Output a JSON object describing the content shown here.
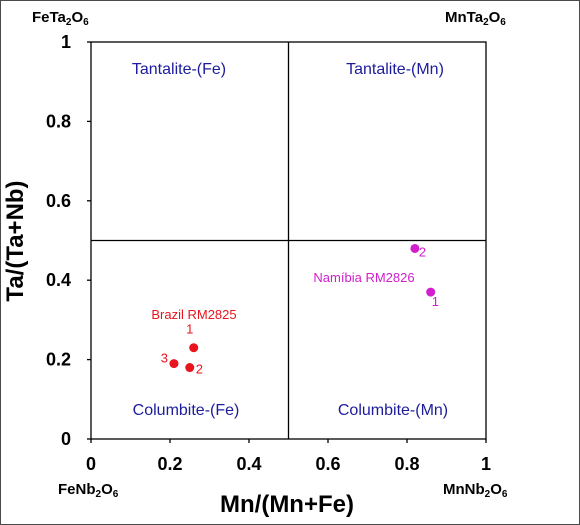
{
  "chart_data": {
    "type": "scatter",
    "xlabel": "Mn/(Mn+Fe)",
    "ylabel": "Ta/(Ta+Nb)",
    "xlim": [
      0,
      1
    ],
    "ylim": [
      0,
      1
    ],
    "xticks": [
      "0",
      "0.2",
      "0.4",
      "0.6",
      "0.8",
      "1"
    ],
    "yticks": [
      "0",
      "0.2",
      "0.4",
      "0.6",
      "0.8",
      "1"
    ],
    "grid": false,
    "divider_lines": {
      "x": 0.5,
      "y": 0.5
    },
    "corner_labels": {
      "top_left": {
        "base": "FeTa",
        "n1": "2",
        "mid": "O",
        "n2": "6"
      },
      "top_right": {
        "base": "MnTa",
        "n1": "2",
        "mid": "O",
        "n2": "6"
      },
      "bottom_left": {
        "base": "FeNb",
        "n1": "2",
        "mid": "O",
        "n2": "6"
      },
      "bottom_right": {
        "base": "MnNb",
        "n1": "2",
        "mid": "O",
        "n2": "6"
      }
    },
    "regions": {
      "tantalite_fe": "Tantalite-(Fe)",
      "tantalite_mn": "Tantalite-(Mn)",
      "columbite_fe": "Columbite-(Fe)",
      "columbite_mn": "Columbite-(Mn)"
    },
    "series": [
      {
        "name": "Brazil RM2825",
        "color": "#e8141e",
        "points": [
          {
            "label": "1",
            "x": 0.26,
            "y": 0.23
          },
          {
            "label": "2",
            "x": 0.25,
            "y": 0.18
          },
          {
            "label": "3",
            "x": 0.21,
            "y": 0.19
          }
        ]
      },
      {
        "name": "Namíbia RM2826",
        "color": "#d21ecd",
        "points": [
          {
            "label": "1",
            "x": 0.86,
            "y": 0.37
          },
          {
            "label": "2",
            "x": 0.82,
            "y": 0.48
          }
        ]
      }
    ]
  }
}
